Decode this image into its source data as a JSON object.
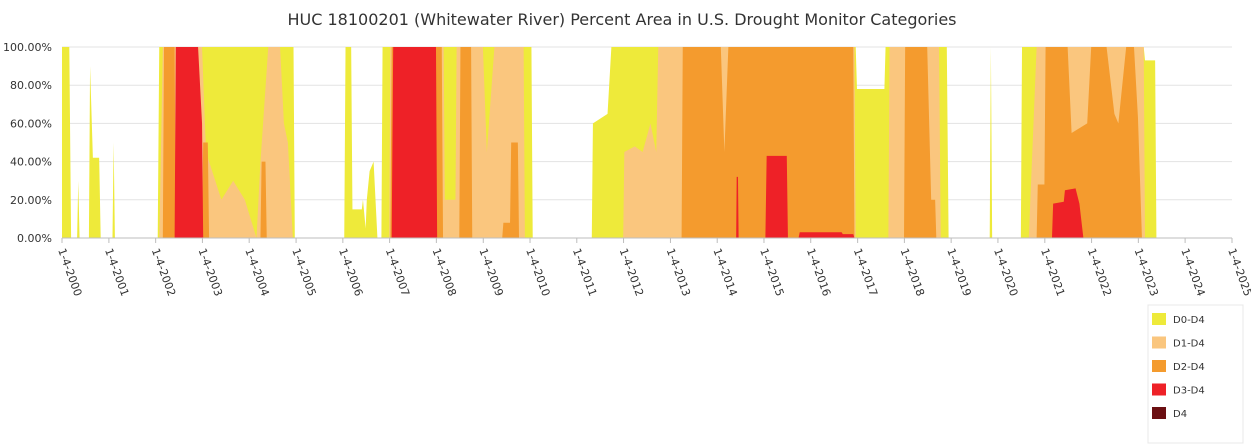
{
  "chart_data": {
    "type": "area",
    "title": "HUC 18100201 (Whitewater River) Percent Area in U.S. Drought Monitor Categories",
    "xlabel": "",
    "ylabel": "",
    "ylim": [
      0,
      100
    ],
    "xlim": [
      "2000-01-04",
      "2025-01-04"
    ],
    "y_ticks": [
      "0.00%",
      "20.00%",
      "40.00%",
      "60.00%",
      "80.00%",
      "100.00%"
    ],
    "y_tick_values": [
      0,
      20,
      40,
      60,
      80,
      100
    ],
    "x_ticks": [
      "1-4-2000",
      "1-4-2001",
      "1-4-2002",
      "1-4-2003",
      "1-4-2004",
      "1-4-2005",
      "1-4-2006",
      "1-4-2007",
      "1-4-2008",
      "1-4-2009",
      "1-4-2010",
      "1-4-2011",
      "1-4-2012",
      "1-4-2013",
      "1-4-2014",
      "1-4-2015",
      "1-4-2016",
      "1-4-2017",
      "1-4-2018",
      "1-4-2019",
      "1-4-2020",
      "1-4-2021",
      "1-4-2022",
      "1-4-2023",
      "1-4-2024",
      "1-4-2025"
    ],
    "grid": "horizontal",
    "legend_position": "bottom-right",
    "series": [
      {
        "name": "D0-D4",
        "color": "#eeea3a",
        "points": [
          [
            "2000-01-04",
            100
          ],
          [
            "2000-03-01",
            100
          ],
          [
            "2000-03-15",
            0
          ],
          [
            "2000-05-01",
            0
          ],
          [
            "2000-05-10",
            30
          ],
          [
            "2000-05-20",
            0
          ],
          [
            "2000-08-01",
            0
          ],
          [
            "2000-08-10",
            90
          ],
          [
            "2000-09-01",
            42
          ],
          [
            "2000-10-20",
            42
          ],
          [
            "2000-11-01",
            0
          ],
          [
            "2001-02-01",
            0
          ],
          [
            "2001-02-10",
            50
          ],
          [
            "2001-02-20",
            0
          ],
          [
            "2002-01-20",
            0
          ],
          [
            "2002-02-01",
            100
          ],
          [
            "2004-12-15",
            100
          ],
          [
            "2004-12-25",
            0
          ],
          [
            "2006-01-15",
            0
          ],
          [
            "2006-01-25",
            100
          ],
          [
            "2006-03-10",
            100
          ],
          [
            "2006-03-20",
            15
          ],
          [
            "2006-06-01",
            15
          ],
          [
            "2006-06-10",
            20
          ],
          [
            "2006-07-01",
            5
          ],
          [
            "2006-07-10",
            20
          ],
          [
            "2006-08-01",
            35
          ],
          [
            "2006-09-01",
            40
          ],
          [
            "2006-10-01",
            0
          ],
          [
            "2006-11-01",
            0
          ],
          [
            "2006-11-10",
            100
          ],
          [
            "2010-01-15",
            100
          ],
          [
            "2010-01-25",
            0
          ],
          [
            "2011-05-01",
            0
          ],
          [
            "2011-05-10",
            60
          ],
          [
            "2011-09-01",
            65
          ],
          [
            "2011-10-01",
            100
          ],
          [
            "2016-12-20",
            100
          ],
          [
            "2016-12-30",
            78
          ],
          [
            "2017-08-01",
            78
          ],
          [
            "2017-08-10",
            100
          ],
          [
            "2018-12-01",
            100
          ],
          [
            "2018-12-15",
            0
          ],
          [
            "2019-11-01",
            0
          ],
          [
            "2019-11-10",
            100
          ],
          [
            "2019-11-20",
            0
          ],
          [
            "2020-07-01",
            0
          ],
          [
            "2020-07-10",
            100
          ],
          [
            "2023-02-15",
            100
          ],
          [
            "2023-02-25",
            93
          ],
          [
            "2023-05-15",
            93
          ],
          [
            "2023-05-25",
            0
          ],
          [
            "2025-01-04",
            0
          ]
        ]
      },
      {
        "name": "D1-D4",
        "color": "#fac67e",
        "points": [
          [
            "2000-01-04",
            0
          ],
          [
            "2002-02-01",
            0
          ],
          [
            "2002-02-10",
            30
          ],
          [
            "2002-03-01",
            100
          ],
          [
            "2003-01-01",
            100
          ],
          [
            "2003-02-01",
            45
          ],
          [
            "2003-06-01",
            20
          ],
          [
            "2003-09-01",
            30
          ],
          [
            "2003-12-01",
            20
          ],
          [
            "2004-03-01",
            0
          ],
          [
            "2004-04-01",
            40
          ],
          [
            "2004-06-01",
            100
          ],
          [
            "2004-09-01",
            100
          ],
          [
            "2004-10-01",
            60
          ],
          [
            "2004-11-01",
            50
          ],
          [
            "2004-12-10",
            0
          ],
          [
            "2007-01-01",
            0
          ],
          [
            "2007-01-10",
            100
          ],
          [
            "2008-03-01",
            100
          ],
          [
            "2008-03-10",
            20
          ],
          [
            "2008-06-01",
            20
          ],
          [
            "2008-06-10",
            100
          ],
          [
            "2009-01-01",
            100
          ],
          [
            "2009-02-01",
            45
          ],
          [
            "2009-04-01",
            100
          ],
          [
            "2009-11-15",
            100
          ],
          [
            "2009-11-25",
            0
          ],
          [
            "2012-01-01",
            0
          ],
          [
            "2012-01-10",
            45
          ],
          [
            "2012-04-01",
            48
          ],
          [
            "2012-06-01",
            45
          ],
          [
            "2012-08-01",
            60
          ],
          [
            "2012-09-15",
            45
          ],
          [
            "2012-10-01",
            100
          ],
          [
            "2016-12-10",
            100
          ],
          [
            "2016-12-20",
            0
          ],
          [
            "2017-09-01",
            0
          ],
          [
            "2017-09-10",
            100
          ],
          [
            "2018-10-01",
            100
          ],
          [
            "2018-10-15",
            0
          ],
          [
            "2020-09-01",
            0
          ],
          [
            "2020-09-10",
            15
          ],
          [
            "2020-11-01",
            100
          ],
          [
            "2023-02-15",
            100
          ],
          [
            "2023-02-25",
            0
          ],
          [
            "2025-01-04",
            0
          ]
        ]
      },
      {
        "name": "D2-D4",
        "color": "#f49b2e",
        "points": [
          [
            "2000-01-04",
            0
          ],
          [
            "2002-03-01",
            0
          ],
          [
            "2002-03-10",
            100
          ],
          [
            "2002-06-01",
            100
          ],
          [
            "2002-06-10",
            0
          ],
          [
            "2003-01-01",
            0
          ],
          [
            "2003-01-10",
            50
          ],
          [
            "2003-02-15",
            50
          ],
          [
            "2003-02-25",
            0
          ],
          [
            "2004-04-01",
            0
          ],
          [
            "2004-04-10",
            40
          ],
          [
            "2004-05-10",
            40
          ],
          [
            "2004-05-20",
            0
          ],
          [
            "2007-01-10",
            0
          ],
          [
            "2007-01-20",
            100
          ],
          [
            "2008-02-15",
            100
          ],
          [
            "2008-02-25",
            0
          ],
          [
            "2008-07-01",
            0
          ],
          [
            "2008-07-10",
            100
          ],
          [
            "2008-10-01",
            100
          ],
          [
            "2008-10-10",
            0
          ],
          [
            "2009-06-01",
            0
          ],
          [
            "2009-06-10",
            8
          ],
          [
            "2009-08-01",
            8
          ],
          [
            "2009-08-10",
            50
          ],
          [
            "2009-10-01",
            50
          ],
          [
            "2009-10-10",
            0
          ],
          [
            "2013-04-01",
            0
          ],
          [
            "2013-04-10",
            100
          ],
          [
            "2014-02-01",
            100
          ],
          [
            "2014-03-01",
            45
          ],
          [
            "2014-04-01",
            100
          ],
          [
            "2016-12-01",
            100
          ],
          [
            "2016-12-10",
            0
          ],
          [
            "2018-01-01",
            0
          ],
          [
            "2018-01-10",
            100
          ],
          [
            "2018-07-01",
            100
          ],
          [
            "2018-08-01",
            20
          ],
          [
            "2018-09-01",
            20
          ],
          [
            "2018-09-10",
            0
          ],
          [
            "2020-11-01",
            0
          ],
          [
            "2020-11-10",
            28
          ],
          [
            "2021-01-01",
            28
          ],
          [
            "2021-01-10",
            100
          ],
          [
            "2021-07-01",
            100
          ],
          [
            "2021-08-01",
            55
          ],
          [
            "2021-12-01",
            60
          ],
          [
            "2022-01-01",
            100
          ],
          [
            "2022-05-01",
            100
          ],
          [
            "2022-07-01",
            65
          ],
          [
            "2022-08-01",
            60
          ],
          [
            "2022-10-01",
            100
          ],
          [
            "2022-12-01",
            100
          ],
          [
            "2023-01-01",
            63
          ],
          [
            "2023-02-01",
            0
          ],
          [
            "2025-01-04",
            0
          ]
        ]
      },
      {
        "name": "D3-D4",
        "color": "#ee2127",
        "points": [
          [
            "2000-01-04",
            0
          ],
          [
            "2002-06-01",
            0
          ],
          [
            "2002-06-10",
            100
          ],
          [
            "2002-12-01",
            100
          ],
          [
            "2003-01-01",
            60
          ],
          [
            "2003-01-10",
            0
          ],
          [
            "2007-01-20",
            0
          ],
          [
            "2007-02-01",
            100
          ],
          [
            "2008-01-01",
            100
          ],
          [
            "2008-01-10",
            0
          ],
          [
            "2014-06-01",
            0
          ],
          [
            "2014-06-05",
            32
          ],
          [
            "2014-06-15",
            32
          ],
          [
            "2014-06-20",
            0
          ],
          [
            "2015-01-15",
            0
          ],
          [
            "2015-01-25",
            43
          ],
          [
            "2015-07-01",
            43
          ],
          [
            "2015-07-10",
            0
          ],
          [
            "2015-10-01",
            0
          ],
          [
            "2015-10-10",
            3
          ],
          [
            "2016-09-01",
            3
          ],
          [
            "2016-09-10",
            2
          ],
          [
            "2016-12-01",
            2
          ],
          [
            "2016-12-10",
            0
          ],
          [
            "2021-03-01",
            0
          ],
          [
            "2021-03-10",
            18
          ],
          [
            "2021-06-01",
            19
          ],
          [
            "2021-06-10",
            25
          ],
          [
            "2021-09-01",
            26
          ],
          [
            "2021-10-01",
            18
          ],
          [
            "2021-11-01",
            0
          ],
          [
            "2025-01-04",
            0
          ]
        ]
      },
      {
        "name": "D4",
        "color": "#6b0f12",
        "points": [
          [
            "2000-01-04",
            0
          ],
          [
            "2025-01-04",
            0
          ]
        ]
      }
    ]
  }
}
